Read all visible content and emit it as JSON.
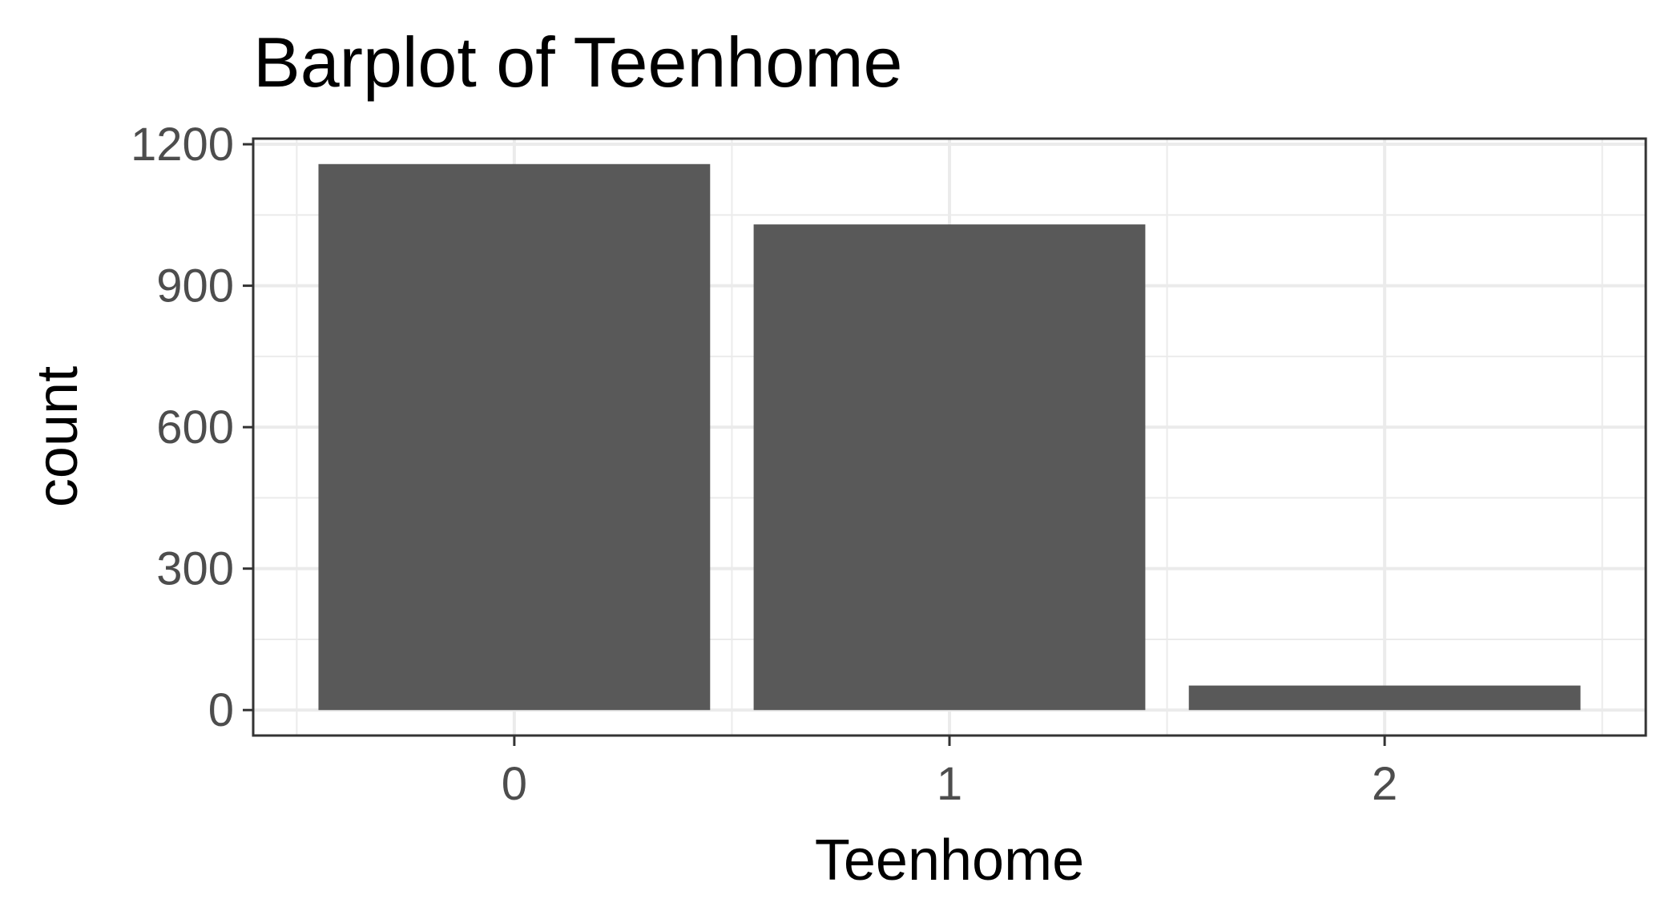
{
  "chart_data": {
    "type": "bar",
    "title": "Barplot of Teenhome",
    "xlabel": "Teenhome",
    "ylabel": "count",
    "categories": [
      "0",
      "1",
      "2"
    ],
    "values": [
      1158,
      1030,
      52
    ],
    "ylim": [
      -54,
      1212
    ],
    "yticks": [
      0,
      300,
      600,
      900,
      1200
    ],
    "grid": true,
    "bar_color": "#595959",
    "panel_background": "#ffffff",
    "grid_color": "#ebebeb",
    "border_color": "#333333"
  }
}
